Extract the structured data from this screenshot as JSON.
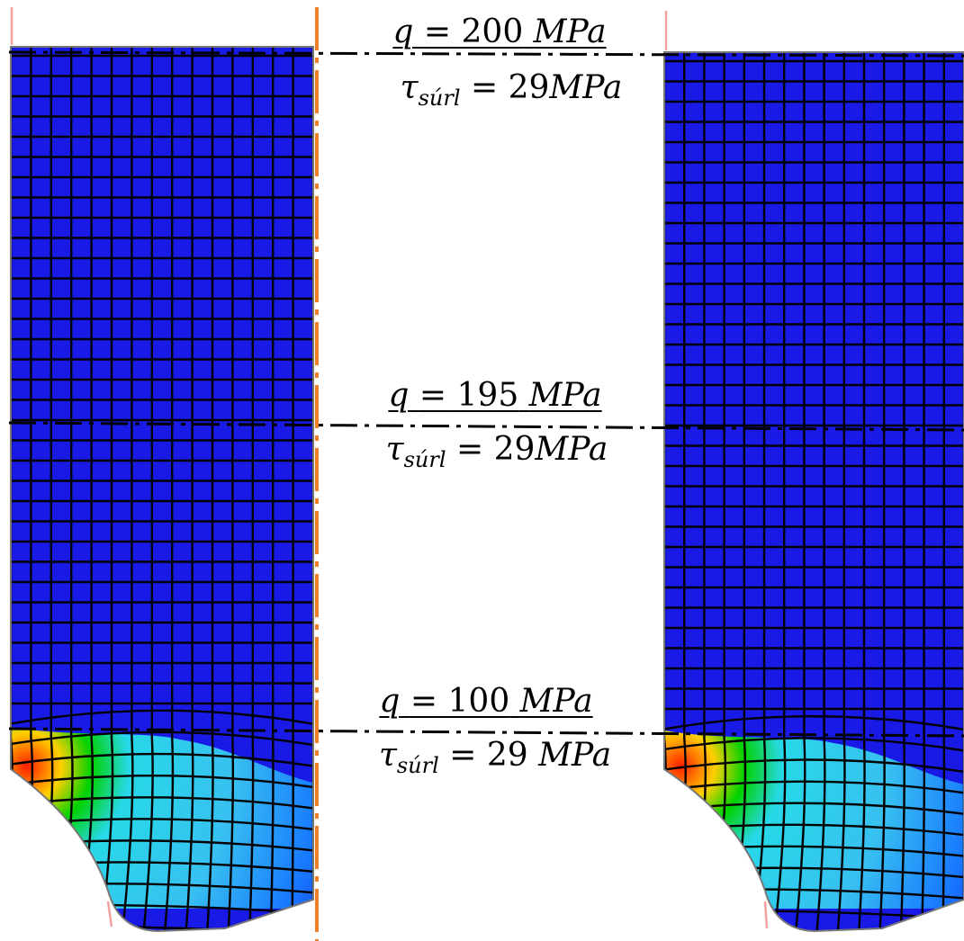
{
  "colors": {
    "background": "#ffffff",
    "mesh_fill": "#1a1ae6",
    "mesh_lines": "#000000",
    "axis_line": "#f07f2a",
    "edge_line": "#f2a0a0",
    "level_line": "#000000",
    "hot_1": "#ff1e00",
    "hot_2": "#ffd000",
    "hot_3": "#00d200",
    "hot_4": "#27d8e8",
    "hot_5": "#1878ff"
  },
  "levels": [
    {
      "q_symbol": "q",
      "q_equals": "=",
      "q_value": "200",
      "q_unit": "MPa",
      "tau_symbol": "τ",
      "tau_sub": "súrl",
      "tau_equals": "=",
      "tau_value": "29",
      "tau_unit": "MPa"
    },
    {
      "q_symbol": "q",
      "q_equals": "=",
      "q_value": "195",
      "q_unit": "MPa",
      "tau_symbol": "τ",
      "tau_sub": "súrl",
      "tau_equals": "=",
      "tau_value": "29",
      "tau_unit": "MPa"
    },
    {
      "q_symbol": "q",
      "q_equals": "=",
      "q_value": "100",
      "q_unit": "MPa",
      "tau_symbol": "τ",
      "tau_sub": "súrl",
      "tau_equals": "=",
      "tau_value": "29",
      "tau_unit": "MPa"
    }
  ]
}
